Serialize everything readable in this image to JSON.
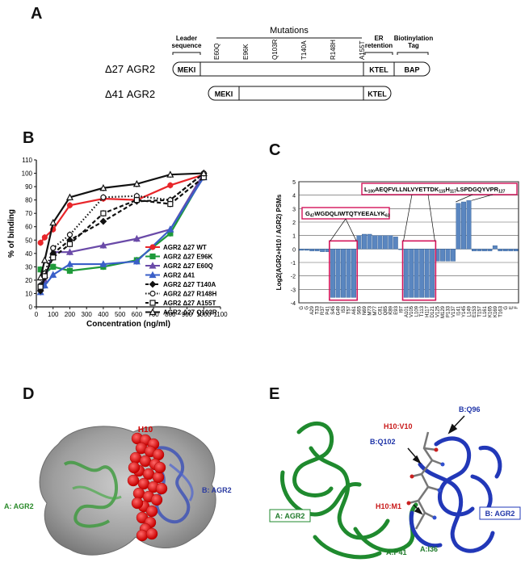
{
  "panels": {
    "a": {
      "letter": "A",
      "mutations_title": "Mutations",
      "leader_label_1": "Leader",
      "leader_label_2": "sequence",
      "er_label_1": "ER",
      "er_label_2": "retention",
      "biotin_label_1": "Biotinylation",
      "biotin_label_2": "Tag",
      "mutations": [
        "E60Q",
        "E96K",
        "Q103R",
        "T140A",
        "R148H",
        "A155T"
      ],
      "construct1": {
        "name": "Δ27 AGR2",
        "start": "MEKI",
        "end": "KTEL",
        "tag": "BAP"
      },
      "construct2": {
        "name": "Δ41 AGR2",
        "start": "MEKI",
        "end": "KTEL"
      }
    },
    "b": {
      "letter": "B"
    },
    "c": {
      "letter": "C"
    },
    "d": {
      "letter": "D",
      "label_h10": "H10",
      "label_a": "A: AGR2",
      "label_b": "B: AGR2"
    },
    "e": {
      "letter": "E",
      "labels": {
        "bq96": "B:Q96",
        "h10v10": "H10:V10",
        "bq102": "B:Q102",
        "h10m1": "H10:M1",
        "ap41": "A:P41",
        "ai36": "A:I36",
        "box_a": "A: AGR2",
        "box_b": "B: AGR2"
      }
    }
  },
  "chart_data": [
    {
      "type": "line",
      "xlabel": "Concentration (ng/ml)",
      "ylabel": "% of binding",
      "xlim": [
        0,
        1100
      ],
      "ylim": [
        0,
        110
      ],
      "xticks": [
        0,
        100,
        200,
        300,
        400,
        500,
        600,
        700,
        800,
        900,
        1000,
        1100
      ],
      "yticks": [
        0,
        10,
        20,
        30,
        40,
        50,
        60,
        70,
        80,
        90,
        100,
        110
      ],
      "x": [
        25,
        50,
        100,
        200,
        400,
        600,
        800,
        1000
      ],
      "legend_position": "middle-right",
      "series": [
        {
          "name": "AGR2 Δ27 WT",
          "color": "#e8262a",
          "style": "solid",
          "marker": "circle-filled",
          "values": [
            48,
            52,
            58,
            76,
            81,
            80,
            91,
            99
          ]
        },
        {
          "name": "AGR2 Δ27 E96K",
          "color": "#1f9a3a",
          "style": "solid",
          "marker": "square-filled",
          "values": [
            28,
            25,
            30,
            27,
            30,
            35,
            55,
            98
          ]
        },
        {
          "name": "AGR2 Δ27 E60Q",
          "color": "#6a4aa8",
          "style": "solid",
          "marker": "triangle-filled",
          "values": [
            14,
            20,
            41,
            41,
            46,
            51,
            58,
            100
          ]
        },
        {
          "name": "AGR2 Δ41",
          "color": "#3a5fc8",
          "style": "solid",
          "marker": "triangle-filled",
          "values": [
            11,
            16,
            24,
            32,
            32,
            34,
            58,
            97
          ]
        },
        {
          "name": "AGR2 Δ27 T140A",
          "color": "#111111",
          "style": "dash",
          "marker": "diamond-filled",
          "values": [
            12,
            22,
            40,
            50,
            64,
            79,
            80,
            100
          ]
        },
        {
          "name": "AGR2 Δ27 R148H",
          "color": "#111111",
          "style": "dot",
          "marker": "circle-open",
          "values": [
            16,
            25,
            44,
            54,
            82,
            83,
            80,
            100
          ]
        },
        {
          "name": "AGR2 Δ27 A155T",
          "color": "#111111",
          "style": "dash",
          "marker": "square-open",
          "values": [
            15,
            23,
            37,
            47,
            70,
            80,
            77,
            97
          ]
        },
        {
          "name": "AGR2 Δ27 Q103R",
          "color": "#111111",
          "style": "solid",
          "marker": "triangle-open",
          "values": [
            22,
            35,
            63,
            82,
            89,
            92,
            99,
            100
          ]
        }
      ]
    },
    {
      "type": "bar",
      "ylabel": "Log2(AGR2+H10 / AGR2) PSMs",
      "ylim": [
        -4,
        5
      ],
      "yticks": [
        -4,
        -3,
        -2,
        -1,
        0,
        1,
        2,
        3,
        4,
        5
      ],
      "categories": [
        "G",
        "G",
        "A29",
        "T33",
        "R37",
        "P41",
        "S45",
        "G49",
        "I53",
        "T57",
        "A61",
        "S65",
        "N69",
        "M73",
        "M77",
        "C81",
        "Q85",
        "K89",
        "E93",
        "I97",
        "A101",
        "V105",
        "L109",
        "T113",
        "H117",
        "D121",
        "V125",
        "M129",
        "P133",
        "V137",
        "I141",
        "Y145",
        "L149",
        "E153",
        "T157",
        "L161",
        "K165",
        "K169",
        "T163",
        "G",
        "E",
        "F"
      ],
      "values": [
        -0.1,
        -0.1,
        -0.15,
        -0.15,
        -0.2,
        -0.2,
        -3.6,
        -3.6,
        -3.6,
        -3.6,
        -3.6,
        1.0,
        1.1,
        1.1,
        1.0,
        1.0,
        1.0,
        1.0,
        0.9,
        -0.05,
        -3.6,
        -3.6,
        -3.6,
        -3.6,
        -3.6,
        -3.6,
        -0.9,
        -0.9,
        -0.9,
        -0.9,
        3.4,
        3.5,
        3.6,
        -0.15,
        -0.15,
        -0.15,
        -0.15,
        0.25,
        -0.15,
        -0.15,
        -0.15,
        -0.15
      ],
      "annotations": [
        {
          "text": "G",
          "sub1": "47",
          "mid": "WGDQLIWTQTYEEALYK",
          "sub2": "63"
        },
        {
          "text": "L",
          "sub1": "100",
          "mid": "AEQFVLLNLVYETTDK",
          "sub2": "115",
          "mid2": "H",
          "sub3": "117",
          "tail": "LSPDGQYVPR",
          "sub4": "127"
        }
      ]
    }
  ]
}
